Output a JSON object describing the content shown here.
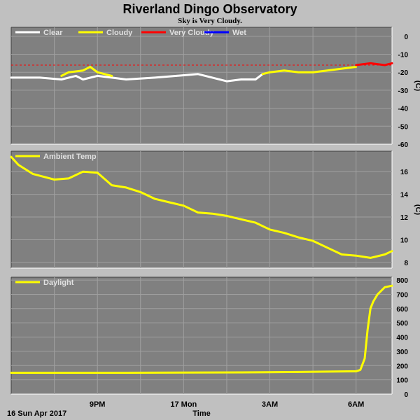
{
  "title": "Riverland Dingo Observatory",
  "subtitle": "Sky is Very Cloudy.",
  "colors": {
    "page_bg": "#c0c0c0",
    "panel_bg": "#808080",
    "grid": "#a0a0a0",
    "text": "#000000",
    "legend_text": "#e0e0e0",
    "clear": "#ffffff",
    "cloudy": "#ffff00",
    "very_cloudy": "#ff0000",
    "wet": "#0000ff",
    "threshold": "#ff0000"
  },
  "x_axis": {
    "label": "Time",
    "date_label": "16 Sun Apr 2017",
    "range_hours": [
      18.0,
      31.25
    ],
    "ticks": [
      {
        "hour": 21,
        "label": "9PM"
      },
      {
        "hour": 24,
        "label": "17 Mon"
      },
      {
        "hour": 27,
        "label": "3AM"
      },
      {
        "hour": 30,
        "label": "6AM"
      }
    ],
    "minor_grid_hours": [
      19.5,
      22.5,
      25.5,
      28.5
    ]
  },
  "chart_data": [
    {
      "type": "line",
      "id": "sky",
      "legend": [
        {
          "name": "Clear",
          "color": "#ffffff"
        },
        {
          "name": "Cloudy",
          "color": "#ffff00"
        },
        {
          "name": "Very Cloudy",
          "color": "#ff0000"
        },
        {
          "name": "Wet",
          "color": "#0000ff"
        }
      ],
      "ylabel": "(C)",
      "ylim": [
        -60,
        5
      ],
      "yticks": [
        0,
        -10,
        -20,
        -30,
        -40,
        -50,
        -60
      ],
      "threshold": -16,
      "series": [
        {
          "name": "Clear",
          "color": "#ffffff",
          "x": [
            18.0,
            19.0,
            19.75,
            20.25,
            20.5,
            21.0,
            21.5,
            22.0,
            23.0,
            23.75,
            24.5,
            25.0,
            25.5,
            26.0,
            26.5,
            26.75
          ],
          "y": [
            -23,
            -23,
            -24,
            -22,
            -24,
            -22,
            -23,
            -24,
            -23,
            -22,
            -21,
            -23,
            -25,
            -24,
            -24,
            -21
          ]
        },
        {
          "name": "Cloudy",
          "color": "#ffff00",
          "x": [
            19.75,
            20.0,
            20.5,
            20.75,
            21.0,
            21.25,
            21.5
          ],
          "y": [
            -22,
            -20,
            -19,
            -17,
            -20,
            -21,
            -22
          ]
        },
        {
          "name": "Cloudy",
          "color": "#ffff00",
          "x": [
            26.75,
            27.0,
            27.5,
            28.0,
            28.5,
            29.0,
            29.5,
            30.0
          ],
          "y": [
            -21,
            -20,
            -19,
            -20,
            -20,
            -19,
            -18,
            -17
          ]
        },
        {
          "name": "Very Cloudy",
          "color": "#ff0000",
          "x": [
            30.0,
            30.5,
            31.0,
            31.25
          ],
          "y": [
            -16,
            -15,
            -16,
            -15
          ]
        }
      ]
    },
    {
      "type": "line",
      "id": "ambient",
      "legend": [
        {
          "name": "Ambient Temp",
          "color": "#ffff00"
        }
      ],
      "ylabel": "(C)",
      "ylim": [
        7.5,
        17.8
      ],
      "yticks": [
        16,
        14,
        12,
        10,
        8
      ],
      "series": [
        {
          "name": "Ambient Temp",
          "color": "#ffff00",
          "x": [
            18.0,
            18.25,
            18.75,
            19.5,
            20.0,
            20.5,
            21.0,
            21.5,
            22.0,
            22.5,
            23.0,
            23.5,
            24.0,
            24.5,
            25.0,
            25.5,
            26.0,
            26.5,
            27.0,
            27.5,
            28.0,
            28.5,
            29.0,
            29.5,
            30.0,
            30.5,
            31.0,
            31.25
          ],
          "y": [
            17.3,
            16.6,
            15.8,
            15.3,
            15.4,
            16.0,
            15.9,
            14.8,
            14.6,
            14.2,
            13.6,
            13.3,
            13.0,
            12.4,
            12.3,
            12.1,
            11.8,
            11.5,
            10.9,
            10.6,
            10.2,
            9.9,
            9.3,
            8.7,
            8.6,
            8.4,
            8.7,
            9.0
          ]
        }
      ]
    },
    {
      "type": "line",
      "id": "daylight",
      "legend": [
        {
          "name": "Daylight",
          "color": "#ffff00"
        }
      ],
      "ylabel": "",
      "ylim": [
        0,
        820
      ],
      "yticks": [
        800,
        700,
        600,
        500,
        400,
        300,
        200,
        100,
        0
      ],
      "series": [
        {
          "name": "Daylight",
          "color": "#ffff00",
          "x": [
            18.0,
            22.0,
            26.0,
            28.0,
            30.0,
            30.15,
            30.3,
            30.4,
            30.5,
            30.6,
            30.75,
            31.0,
            31.25
          ],
          "y": [
            150,
            150,
            152,
            155,
            160,
            170,
            250,
            450,
            600,
            650,
            700,
            750,
            760
          ]
        }
      ]
    }
  ]
}
